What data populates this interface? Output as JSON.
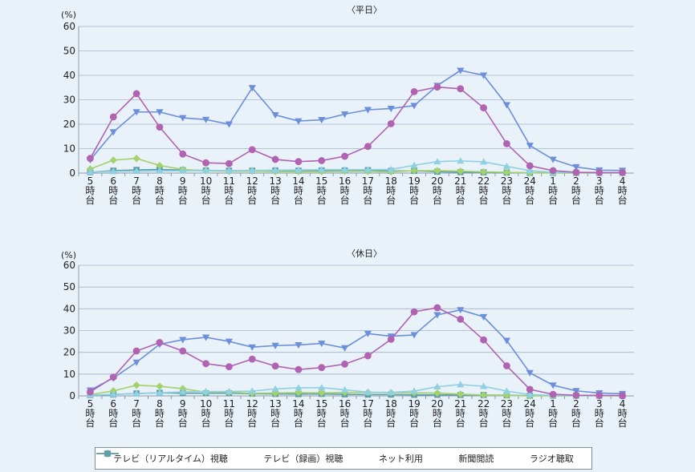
{
  "chart_data": [
    {
      "type": "line",
      "title": "〈平日〉",
      "unit": "(%)",
      "ylim": [
        0,
        60
      ],
      "yticks": [
        0,
        10,
        20,
        30,
        40,
        50,
        60
      ],
      "grid": true,
      "categories": [
        "5時台",
        "6時台",
        "7時台",
        "8時台",
        "9時台",
        "10時台",
        "11時台",
        "12時台",
        "13時台",
        "14時台",
        "15時台",
        "16時台",
        "17時台",
        "18時台",
        "19時台",
        "20時台",
        "21時台",
        "22時台",
        "23時台",
        "24時台",
        "1時台",
        "2時台",
        "3時台",
        "4時台"
      ],
      "series": [
        {
          "name": "テレビ（リアルタイム）視聴",
          "values": [
            6.0,
            23.0,
            32.5,
            18.8,
            7.8,
            4.2,
            3.9,
            9.6,
            5.6,
            4.7,
            5.1,
            6.9,
            10.9,
            20.2,
            33.3,
            35.2,
            34.5,
            26.7,
            12.0,
            3.0,
            1.0,
            0.3,
            0.2,
            0.2
          ]
        },
        {
          "name": "テレビ（録画）視聴",
          "values": [
            0.5,
            0.7,
            0.8,
            0.9,
            0.9,
            1.0,
            1.0,
            1.1,
            1.2,
            1.3,
            1.4,
            1.4,
            1.4,
            1.5,
            3.2,
            4.7,
            5.0,
            4.6,
            2.8,
            1.0,
            0.3,
            0.2,
            0.1,
            0.1
          ]
        },
        {
          "name": "ネット利用",
          "values": [
            5.4,
            16.8,
            25.0,
            25.0,
            22.6,
            21.9,
            20.0,
            34.9,
            23.8,
            21.3,
            21.8,
            24.1,
            25.9,
            26.4,
            27.6,
            35.8,
            42.0,
            40.0,
            27.9,
            11.3,
            5.6,
            2.5,
            1.2,
            1.1
          ]
        },
        {
          "name": "新聞閲読",
          "values": [
            1.7,
            5.3,
            6.0,
            3.1,
            1.5,
            0.9,
            0.7,
            0.8,
            0.6,
            0.6,
            0.6,
            0.7,
            0.7,
            0.5,
            1.0,
            1.0,
            0.8,
            0.5,
            0.3,
            0.1,
            0.0,
            0.0,
            0.0,
            0.0
          ]
        },
        {
          "name": "ラジオ聴取",
          "values": [
            0.4,
            1.0,
            1.3,
            1.5,
            1.2,
            1.1,
            1.0,
            1.0,
            1.1,
            1.0,
            1.1,
            1.1,
            1.2,
            0.9,
            0.9,
            0.6,
            0.4,
            0.3,
            0.2,
            0.1,
            0.1,
            0.1,
            0.1,
            0.1
          ]
        }
      ]
    },
    {
      "type": "line",
      "title": "〈休日〉",
      "unit": "(%)",
      "ylim": [
        0,
        60
      ],
      "yticks": [
        0,
        10,
        20,
        30,
        40,
        50,
        60
      ],
      "grid": true,
      "categories": [
        "5時台",
        "6時台",
        "7時台",
        "8時台",
        "9時台",
        "10時台",
        "11時台",
        "12時台",
        "13時台",
        "14時台",
        "15時台",
        "16時台",
        "17時台",
        "18時台",
        "19時台",
        "20時台",
        "21時台",
        "22時台",
        "23時台",
        "24時台",
        "1時台",
        "2時台",
        "3時台",
        "4時台"
      ],
      "series": [
        {
          "name": "テレビ（リアルタイム）視聴",
          "values": [
            1.8,
            8.6,
            20.6,
            24.5,
            20.6,
            14.8,
            13.4,
            16.9,
            13.7,
            12.1,
            13.0,
            14.6,
            18.4,
            26.0,
            38.6,
            40.5,
            35.2,
            25.7,
            13.8,
            3.0,
            0.7,
            0.3,
            0.2,
            0.1
          ]
        },
        {
          "name": "テレビ（録画）視聴",
          "values": [
            0.3,
            0.7,
            1.0,
            1.4,
            1.8,
            2.0,
            2.0,
            2.2,
            3.2,
            3.7,
            3.8,
            2.8,
            1.7,
            1.6,
            2.2,
            4.2,
            5.2,
            4.4,
            2.2,
            0.6,
            0.2,
            0.1,
            0.1,
            0.1
          ]
        },
        {
          "name": "ネット利用",
          "values": [
            2.6,
            8.2,
            15.4,
            23.7,
            25.8,
            26.9,
            25.0,
            22.4,
            23.1,
            23.4,
            24.1,
            22.0,
            28.6,
            27.4,
            28.0,
            37.2,
            39.5,
            36.3,
            25.4,
            10.6,
            4.9,
            2.3,
            1.3,
            1.0
          ]
        },
        {
          "name": "新聞閲読",
          "values": [
            0.6,
            2.3,
            4.9,
            4.4,
            3.3,
            1.7,
            1.7,
            1.2,
            1.3,
            1.5,
            1.4,
            1.6,
            1.6,
            1.5,
            1.4,
            1.3,
            0.8,
            0.4,
            0.2,
            0.0,
            0.0,
            0.0,
            0.0,
            0.0
          ]
        },
        {
          "name": "ラジオ聴取",
          "values": [
            0.3,
            0.6,
            1.1,
            1.4,
            1.2,
            1.2,
            1.2,
            1.0,
            0.9,
            0.8,
            0.9,
            0.7,
            0.6,
            0.6,
            0.5,
            0.5,
            0.4,
            0.4,
            0.3,
            0.1,
            0.1,
            0.1,
            0.1,
            0.1
          ]
        }
      ]
    }
  ],
  "legend": {
    "items": [
      {
        "label": "テレビ（リアルタイム）視聴",
        "marker": "circle",
        "color": "#b063b0"
      },
      {
        "label": "テレビ（録画）視聴",
        "marker": "triangle-up",
        "color": "#8fd0e3"
      },
      {
        "label": "ネット利用",
        "marker": "triangle-down",
        "color": "#6b8fd9"
      },
      {
        "label": "新聞閲読",
        "marker": "diamond",
        "color": "#a3d16a"
      },
      {
        "label": "ラジオ聴取",
        "marker": "square",
        "color": "#5e9fa8"
      }
    ]
  }
}
